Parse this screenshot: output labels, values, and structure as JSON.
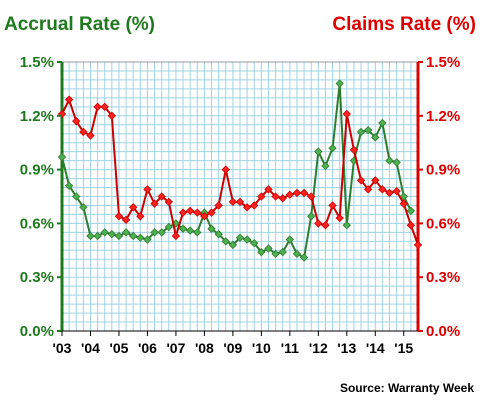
{
  "chart_data": {
    "type": "line",
    "title_left": "Accrual Rate (%)",
    "title_right": "Claims Rate (%)",
    "source": "Source: Warranty Week",
    "x_labels": [
      "'03",
      "'04",
      "'05",
      "'06",
      "'07",
      "'08",
      "'09",
      "'10",
      "'11",
      "'12",
      "'13",
      "'14",
      "'15"
    ],
    "x_range": [
      2003,
      2015.5
    ],
    "y_left": {
      "range": [
        0,
        1.5
      ],
      "ticks": [
        0.0,
        0.3,
        0.6,
        0.9,
        1.2,
        1.5
      ],
      "tick_labels": [
        "0.0%",
        "0.3%",
        "0.6%",
        "0.9%",
        "1.2%",
        "1.5%"
      ]
    },
    "y_right": {
      "range": [
        0,
        1.5
      ],
      "ticks": [
        0.0,
        0.3,
        0.6,
        0.9,
        1.2,
        1.5
      ],
      "tick_labels": [
        "0.0%",
        "0.3%",
        "0.6%",
        "0.9%",
        "1.2%",
        "1.5%"
      ]
    },
    "grid": true,
    "series": [
      {
        "axis": "left",
        "color": "#2e7d2e",
        "marker_color": "#4caf50",
        "points": [
          [
            2003.0,
            0.97
          ],
          [
            2003.25,
            0.81
          ],
          [
            2003.5,
            0.75
          ],
          [
            2003.75,
            0.69
          ],
          [
            2004.0,
            0.53
          ],
          [
            2004.25,
            0.53
          ],
          [
            2004.5,
            0.55
          ],
          [
            2004.75,
            0.54
          ],
          [
            2005.0,
            0.53
          ],
          [
            2005.25,
            0.55
          ],
          [
            2005.5,
            0.53
          ],
          [
            2005.75,
            0.52
          ],
          [
            2006.0,
            0.51
          ],
          [
            2006.25,
            0.55
          ],
          [
            2006.5,
            0.55
          ],
          [
            2006.75,
            0.58
          ],
          [
            2007.0,
            0.6
          ],
          [
            2007.25,
            0.57
          ],
          [
            2007.5,
            0.56
          ],
          [
            2007.75,
            0.55
          ],
          [
            2008.0,
            0.66
          ],
          [
            2008.25,
            0.57
          ],
          [
            2008.5,
            0.54
          ],
          [
            2008.75,
            0.5
          ],
          [
            2009.0,
            0.48
          ],
          [
            2009.25,
            0.52
          ],
          [
            2009.5,
            0.51
          ],
          [
            2009.75,
            0.49
          ],
          [
            2010.0,
            0.44
          ],
          [
            2010.25,
            0.46
          ],
          [
            2010.5,
            0.43
          ],
          [
            2010.75,
            0.44
          ],
          [
            2011.0,
            0.51
          ],
          [
            2011.25,
            0.43
          ],
          [
            2011.5,
            0.41
          ],
          [
            2011.75,
            0.64
          ],
          [
            2012.0,
            1.0
          ],
          [
            2012.25,
            0.92
          ],
          [
            2012.5,
            1.02
          ],
          [
            2012.75,
            1.38
          ],
          [
            2013.0,
            0.59
          ],
          [
            2013.25,
            0.95
          ],
          [
            2013.5,
            1.11
          ],
          [
            2013.75,
            1.12
          ],
          [
            2014.0,
            1.08
          ],
          [
            2014.25,
            1.16
          ],
          [
            2014.5,
            0.95
          ],
          [
            2014.75,
            0.94
          ],
          [
            2015.0,
            0.75
          ],
          [
            2015.25,
            0.67
          ]
        ]
      },
      {
        "axis": "right",
        "color": "#cc0000",
        "marker_color": "#ff2020",
        "points": [
          [
            2003.0,
            1.21
          ],
          [
            2003.25,
            1.29
          ],
          [
            2003.5,
            1.17
          ],
          [
            2003.75,
            1.11
          ],
          [
            2004.0,
            1.09
          ],
          [
            2004.25,
            1.25
          ],
          [
            2004.5,
            1.25
          ],
          [
            2004.75,
            1.2
          ],
          [
            2005.0,
            0.64
          ],
          [
            2005.25,
            0.62
          ],
          [
            2005.5,
            0.69
          ],
          [
            2005.75,
            0.64
          ],
          [
            2006.0,
            0.79
          ],
          [
            2006.25,
            0.71
          ],
          [
            2006.5,
            0.75
          ],
          [
            2006.75,
            0.72
          ],
          [
            2007.0,
            0.53
          ],
          [
            2007.25,
            0.66
          ],
          [
            2007.5,
            0.67
          ],
          [
            2007.75,
            0.66
          ],
          [
            2008.0,
            0.64
          ],
          [
            2008.25,
            0.66
          ],
          [
            2008.5,
            0.7
          ],
          [
            2008.75,
            0.9
          ],
          [
            2009.0,
            0.72
          ],
          [
            2009.25,
            0.72
          ],
          [
            2009.5,
            0.69
          ],
          [
            2009.75,
            0.7
          ],
          [
            2010.0,
            0.75
          ],
          [
            2010.25,
            0.79
          ],
          [
            2010.5,
            0.75
          ],
          [
            2010.75,
            0.74
          ],
          [
            2011.0,
            0.76
          ],
          [
            2011.25,
            0.77
          ],
          [
            2011.5,
            0.77
          ],
          [
            2011.75,
            0.75
          ],
          [
            2012.0,
            0.6
          ],
          [
            2012.25,
            0.59
          ],
          [
            2012.5,
            0.7
          ],
          [
            2012.75,
            0.63
          ],
          [
            2013.0,
            1.21
          ],
          [
            2013.25,
            1.01
          ],
          [
            2013.5,
            0.84
          ],
          [
            2013.75,
            0.79
          ],
          [
            2014.0,
            0.84
          ],
          [
            2014.25,
            0.79
          ],
          [
            2014.5,
            0.77
          ],
          [
            2014.75,
            0.78
          ],
          [
            2015.0,
            0.71
          ],
          [
            2015.25,
            0.59
          ],
          [
            2015.5,
            0.48
          ]
        ]
      }
    ],
    "colors": {
      "left_axis": "#1f7a1f",
      "right_axis": "#dd0000",
      "grid": "#9fd3e6",
      "plot_border": "#999999"
    }
  }
}
